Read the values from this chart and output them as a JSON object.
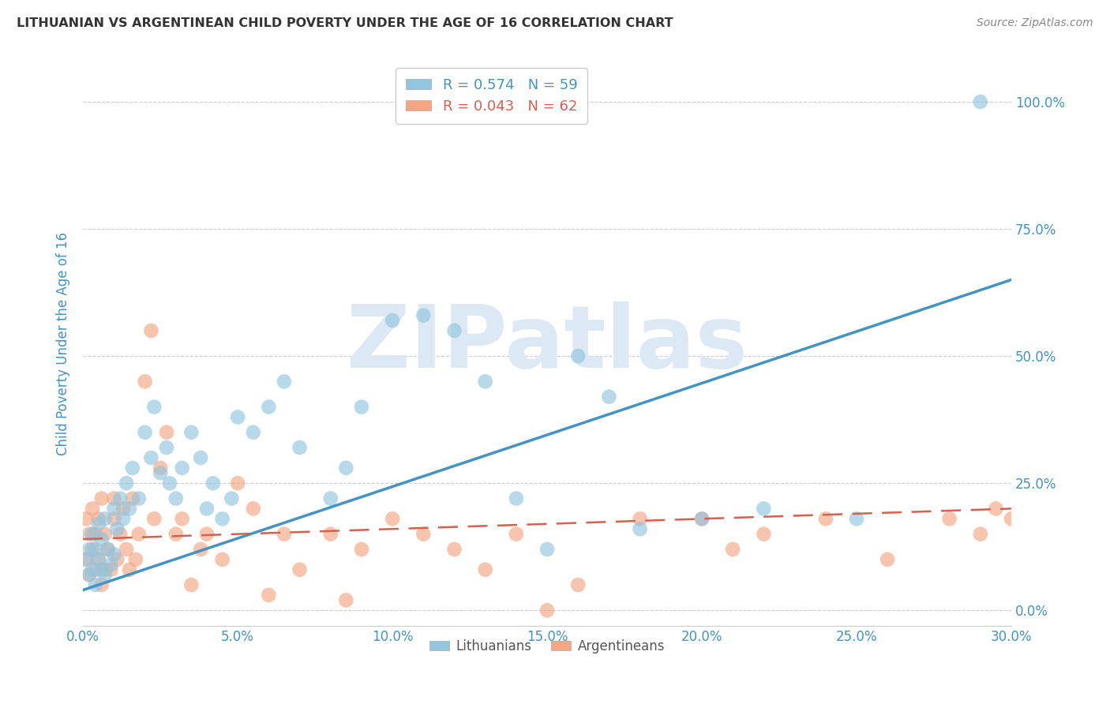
{
  "title": "LITHUANIAN VS ARGENTINEAN CHILD POVERTY UNDER THE AGE OF 16 CORRELATION CHART",
  "source": "Source: ZipAtlas.com",
  "xlabel_ticks": [
    "0.0%",
    "5.0%",
    "10.0%",
    "15.0%",
    "20.0%",
    "25.0%",
    "30.0%"
  ],
  "ylabel_ticks": [
    "0.0%",
    "25.0%",
    "50.0%",
    "75.0%",
    "100.0%"
  ],
  "ylabel_label": "Child Poverty Under the Age of 16",
  "legend_1_label": "R = 0.574   N = 59",
  "legend_2_label": "R = 0.043   N = 62",
  "legend_bottom_1": "Lithuanians",
  "legend_bottom_2": "Argentineans",
  "blue_color": "#92c5de",
  "blue_line_color": "#4393c3",
  "pink_color": "#f4a582",
  "pink_color2": "#f4a582",
  "pink_line_color": "#d6604d",
  "watermark_text": "ZIPatlas",
  "watermark_color": "#dce9f5",
  "title_color": "#333333",
  "axis_label_color": "#4393c3",
  "tick_color": "#4393c3",
  "grid_color": "#cccccc",
  "xlim": [
    0.0,
    0.3
  ],
  "ylim": [
    -0.03,
    1.08
  ],
  "lit_x": [
    0.001,
    0.002,
    0.002,
    0.003,
    0.003,
    0.004,
    0.004,
    0.005,
    0.005,
    0.006,
    0.006,
    0.007,
    0.007,
    0.008,
    0.009,
    0.01,
    0.01,
    0.011,
    0.012,
    0.013,
    0.014,
    0.015,
    0.016,
    0.018,
    0.02,
    0.022,
    0.023,
    0.025,
    0.027,
    0.028,
    0.03,
    0.032,
    0.035,
    0.038,
    0.04,
    0.042,
    0.045,
    0.048,
    0.05,
    0.055,
    0.06,
    0.065,
    0.07,
    0.08,
    0.085,
    0.09,
    0.1,
    0.11,
    0.12,
    0.13,
    0.14,
    0.15,
    0.16,
    0.17,
    0.18,
    0.2,
    0.22,
    0.25,
    0.29
  ],
  "lit_y": [
    0.1,
    0.07,
    0.12,
    0.08,
    0.15,
    0.05,
    0.12,
    0.1,
    0.17,
    0.08,
    0.14,
    0.07,
    0.18,
    0.12,
    0.09,
    0.11,
    0.2,
    0.16,
    0.22,
    0.18,
    0.25,
    0.2,
    0.28,
    0.22,
    0.35,
    0.3,
    0.4,
    0.27,
    0.32,
    0.25,
    0.22,
    0.28,
    0.35,
    0.3,
    0.2,
    0.25,
    0.18,
    0.22,
    0.38,
    0.35,
    0.4,
    0.45,
    0.32,
    0.22,
    0.28,
    0.4,
    0.57,
    0.58,
    0.55,
    0.45,
    0.22,
    0.12,
    0.5,
    0.42,
    0.16,
    0.18,
    0.2,
    0.18,
    1.0
  ],
  "arg_x": [
    0.001,
    0.001,
    0.002,
    0.002,
    0.003,
    0.003,
    0.004,
    0.004,
    0.005,
    0.005,
    0.006,
    0.006,
    0.007,
    0.007,
    0.008,
    0.009,
    0.01,
    0.01,
    0.011,
    0.012,
    0.013,
    0.014,
    0.015,
    0.016,
    0.017,
    0.018,
    0.02,
    0.022,
    0.023,
    0.025,
    0.027,
    0.03,
    0.032,
    0.035,
    0.038,
    0.04,
    0.045,
    0.05,
    0.055,
    0.06,
    0.065,
    0.07,
    0.08,
    0.085,
    0.09,
    0.1,
    0.11,
    0.12,
    0.13,
    0.14,
    0.15,
    0.16,
    0.18,
    0.2,
    0.21,
    0.22,
    0.24,
    0.26,
    0.28,
    0.29,
    0.295,
    0.3
  ],
  "arg_y": [
    0.1,
    0.18,
    0.07,
    0.15,
    0.12,
    0.2,
    0.08,
    0.15,
    0.1,
    0.18,
    0.05,
    0.22,
    0.08,
    0.15,
    0.12,
    0.08,
    0.18,
    0.22,
    0.1,
    0.15,
    0.2,
    0.12,
    0.08,
    0.22,
    0.1,
    0.15,
    0.45,
    0.55,
    0.18,
    0.28,
    0.35,
    0.15,
    0.18,
    0.05,
    0.12,
    0.15,
    0.1,
    0.25,
    0.2,
    0.03,
    0.15,
    0.08,
    0.15,
    0.02,
    0.12,
    0.18,
    0.15,
    0.12,
    0.08,
    0.15,
    0.0,
    0.05,
    0.18,
    0.18,
    0.12,
    0.15,
    0.18,
    0.1,
    0.18,
    0.15,
    0.2,
    0.18
  ]
}
